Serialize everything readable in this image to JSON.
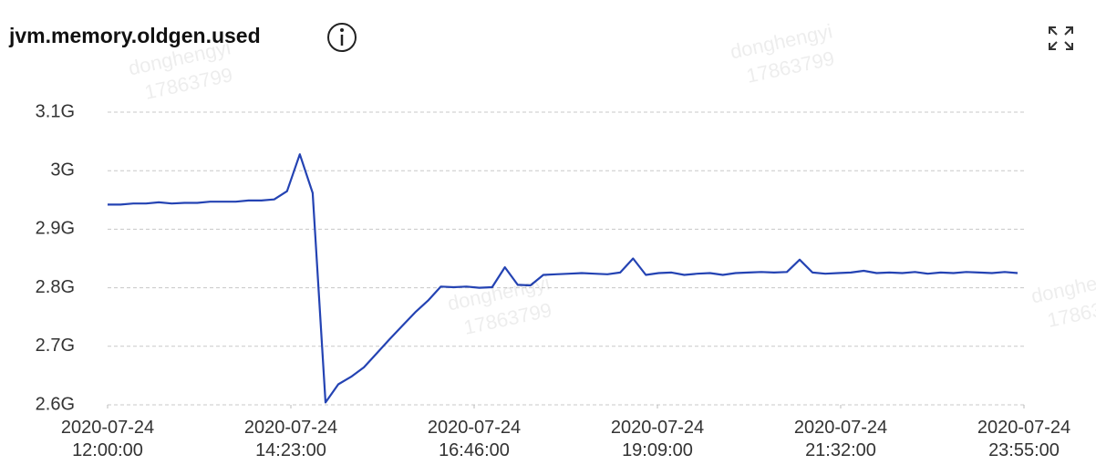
{
  "chart_data": {
    "type": "line",
    "title": "jvm.memory.oldgen.used",
    "watermark": [
      "donghengyi",
      "17863799"
    ],
    "color": "#2443b3",
    "grid": true,
    "x": [
      "2020-07-24 12:00:00",
      "2020-07-24 12:10:00",
      "2020-07-24 12:20:00",
      "2020-07-24 12:30:00",
      "2020-07-24 12:40:00",
      "2020-07-24 12:50:00",
      "2020-07-24 13:00:00",
      "2020-07-24 13:10:00",
      "2020-07-24 13:20:00",
      "2020-07-24 13:30:00",
      "2020-07-24 13:40:00",
      "2020-07-24 13:50:00",
      "2020-07-24 14:00:00",
      "2020-07-24 14:10:00",
      "2020-07-24 14:20:00",
      "2020-07-24 14:30:00",
      "2020-07-24 14:40:00",
      "2020-07-24 14:50:00",
      "2020-07-24 15:00:00",
      "2020-07-24 15:10:00",
      "2020-07-24 15:20:00",
      "2020-07-24 15:30:00",
      "2020-07-24 15:40:00",
      "2020-07-24 15:50:00",
      "2020-07-24 16:00:00",
      "2020-07-24 16:10:00",
      "2020-07-24 16:20:00",
      "2020-07-24 16:30:00",
      "2020-07-24 16:40:00",
      "2020-07-24 16:50:00",
      "2020-07-24 17:00:00",
      "2020-07-24 17:10:00",
      "2020-07-24 17:20:00",
      "2020-07-24 17:30:00",
      "2020-07-24 17:40:00",
      "2020-07-24 17:50:00",
      "2020-07-24 18:00:00",
      "2020-07-24 18:10:00",
      "2020-07-24 18:20:00",
      "2020-07-24 18:30:00",
      "2020-07-24 18:40:00",
      "2020-07-24 18:50:00",
      "2020-07-24 19:00:00",
      "2020-07-24 19:10:00",
      "2020-07-24 19:20:00",
      "2020-07-24 19:30:00",
      "2020-07-24 19:40:00",
      "2020-07-24 19:50:00",
      "2020-07-24 20:00:00",
      "2020-07-24 20:10:00",
      "2020-07-24 20:20:00",
      "2020-07-24 20:30:00",
      "2020-07-24 20:40:00",
      "2020-07-24 20:50:00",
      "2020-07-24 21:00:00",
      "2020-07-24 21:10:00",
      "2020-07-24 21:20:00",
      "2020-07-24 21:30:00",
      "2020-07-24 21:40:00",
      "2020-07-24 21:50:00",
      "2020-07-24 22:00:00",
      "2020-07-24 22:10:00",
      "2020-07-24 22:20:00",
      "2020-07-24 22:30:00",
      "2020-07-24 22:40:00",
      "2020-07-24 22:50:00",
      "2020-07-24 23:00:00",
      "2020-07-24 23:10:00",
      "2020-07-24 23:20:00",
      "2020-07-24 23:30:00",
      "2020-07-24 23:40:00",
      "2020-07-24 23:50:00"
    ],
    "values": [
      2.942,
      2.942,
      2.944,
      2.944,
      2.946,
      2.944,
      2.945,
      2.945,
      2.947,
      2.947,
      2.947,
      2.949,
      2.949,
      2.951,
      2.965,
      3.028,
      2.962,
      2.604,
      2.635,
      2.648,
      2.664,
      2.688,
      2.712,
      2.735,
      2.758,
      2.778,
      2.802,
      2.801,
      2.802,
      2.8,
      2.801,
      2.835,
      2.805,
      2.804,
      2.822,
      2.823,
      2.824,
      2.825,
      2.824,
      2.823,
      2.826,
      2.85,
      2.822,
      2.825,
      2.826,
      2.822,
      2.824,
      2.825,
      2.822,
      2.825,
      2.826,
      2.827,
      2.826,
      2.827,
      2.848,
      2.826,
      2.824,
      2.825,
      2.826,
      2.829,
      2.825,
      2.826,
      2.825,
      2.827,
      2.824,
      2.826,
      2.825,
      2.827,
      2.826,
      2.825,
      2.827,
      2.825
    ],
    "xlim": [
      "2020-07-24 12:00:00",
      "2020-07-24 23:55:00"
    ],
    "xticks": [
      "2020-07-24 12:00:00",
      "2020-07-24 14:23:00",
      "2020-07-24 16:46:00",
      "2020-07-24 19:09:00",
      "2020-07-24 21:32:00",
      "2020-07-24 23:55:00"
    ],
    "ylim": [
      2.6,
      3.1
    ],
    "yticks": [
      {
        "value": 2.6,
        "label": "2.6G"
      },
      {
        "value": 2.7,
        "label": "2.7G"
      },
      {
        "value": 2.8,
        "label": "2.8G"
      },
      {
        "value": 2.9,
        "label": "2.9G"
      },
      {
        "value": 3,
        "label": "3G"
      },
      {
        "value": 3.1,
        "label": "3.1G"
      }
    ]
  }
}
